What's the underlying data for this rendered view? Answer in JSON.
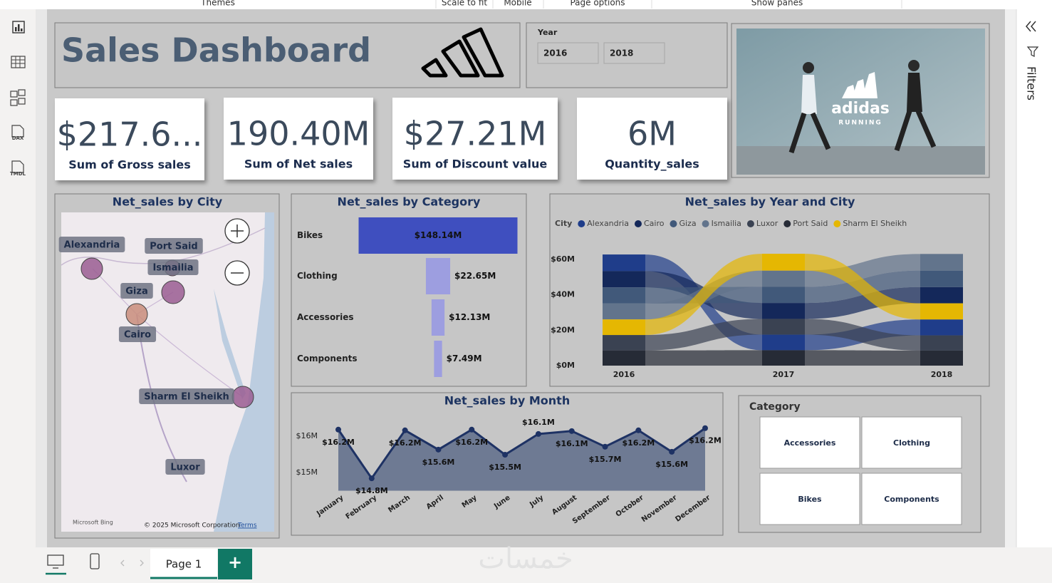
{
  "toolbar": {
    "items": [
      "Themes",
      "Scale to fit",
      "Mobile",
      "Page options",
      "Show panes"
    ]
  },
  "sidebar": {
    "icons": [
      "DAX",
      "TMDL"
    ]
  },
  "header": {
    "title": "Sales Dashboard"
  },
  "year_slicer": {
    "title": "Year",
    "options": [
      "2016",
      "2018"
    ]
  },
  "banner": {
    "brand": "adidas",
    "tagline": "RUNNING"
  },
  "cards": [
    {
      "value": "$217.6...",
      "label": "Sum of Gross sales"
    },
    {
      "value": "190.40M",
      "label": "Sum of Net sales"
    },
    {
      "value": "$27.21M",
      "label": "Sum of Discount value"
    },
    {
      "value": "6M",
      "label": "Quantity_sales"
    }
  ],
  "chart_data": [
    {
      "type": "map",
      "title": "Net_sales by City",
      "categories": [
        "Alexandria",
        "Port Said",
        "Ismailia",
        "Giza",
        "Cairo",
        "Sharm El Sheikh",
        "Luxor"
      ],
      "attribution": "Microsoft Bing",
      "copyright": "© 2025 Microsoft Corporation",
      "terms": "Terms"
    },
    {
      "type": "funnel",
      "title": "Net_sales by Category",
      "categories": [
        "Bikes",
        "Clothing",
        "Accessories",
        "Components"
      ],
      "values": [
        148.14,
        22.65,
        12.13,
        7.49
      ],
      "value_labels": [
        "$148.14M",
        "$22.65M",
        "$12.13M",
        "$7.49M"
      ],
      "colors": [
        "#3f4fbf",
        "#9d9ee0",
        "#9d9ee0",
        "#9d9ee0"
      ]
    },
    {
      "type": "ribbon",
      "title": "Net_sales by Year and City",
      "legend_title": "City",
      "categories": [
        "2016",
        "2017",
        "2018"
      ],
      "series": [
        {
          "name": "Alexandria",
          "color": "#1f3d8a",
          "values": [
            9.4,
            8.8,
            9.0
          ]
        },
        {
          "name": "Cairo",
          "color": "#14285a",
          "values": [
            9.2,
            9.0,
            9.2
          ]
        },
        {
          "name": "Giza",
          "color": "#41597a",
          "values": [
            9.1,
            9.1,
            9.3
          ]
        },
        {
          "name": "Ismailia",
          "color": "#62748c",
          "values": [
            9.0,
            9.2,
            9.4
          ]
        },
        {
          "name": "Luxor",
          "color": "#3a4252",
          "values": [
            8.7,
            8.9,
            8.6
          ]
        },
        {
          "name": "Port Said",
          "color": "#262b36",
          "values": [
            8.6,
            8.7,
            8.5
          ]
        },
        {
          "name": "Sharm El Sheikh",
          "color": "#e5b702",
          "values": [
            8.8,
            9.5,
            9.1
          ]
        }
      ],
      "ylim": [
        0,
        65
      ],
      "yticks": [
        {
          "value": 0,
          "label": "$0M"
        },
        {
          "value": 20,
          "label": "$20M"
        },
        {
          "value": 40,
          "label": "$40M"
        },
        {
          "value": 60,
          "label": "$60M"
        }
      ]
    },
    {
      "type": "area",
      "title": "Net_sales by Month",
      "categories": [
        "January",
        "February",
        "March",
        "April",
        "May",
        "June",
        "July",
        "August",
        "September",
        "October",
        "November",
        "December"
      ],
      "values": [
        16.18,
        14.84,
        16.16,
        15.63,
        16.18,
        15.49,
        16.06,
        16.14,
        15.71,
        16.16,
        15.57,
        16.22
      ],
      "value_labels": [
        "$16.2M",
        "$14.8M",
        "$16.2M",
        "$15.6M",
        "$16.2M",
        "$15.5M",
        "$16.1M",
        "$16.1M",
        "$15.7M",
        "$16.2M",
        "$15.6M",
        "$16.2M"
      ],
      "color": "#1e3264",
      "fill": "#6e7a93",
      "ylim": [
        14.5,
        16.45
      ],
      "yticks": [
        {
          "value": 15,
          "label": "$15M"
        },
        {
          "value": 16,
          "label": "$16M"
        }
      ]
    }
  ],
  "category_slicer": {
    "title": "Category",
    "options": [
      "Accessories",
      "Clothing",
      "Bikes",
      "Components"
    ]
  },
  "filters_pane": {
    "title": "Filters"
  },
  "pages": {
    "tabs": [
      "Page 1"
    ],
    "add": "+"
  },
  "watermark": "خمسات"
}
